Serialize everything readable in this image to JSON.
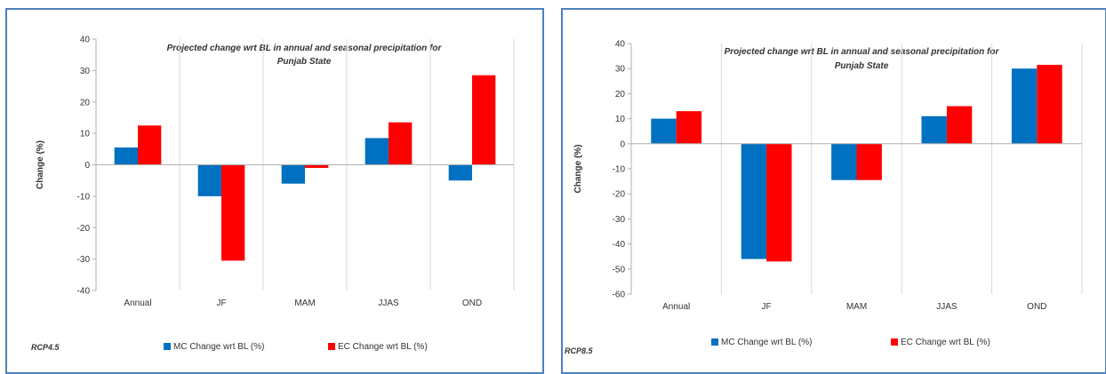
{
  "chart_data": [
    {
      "type": "bar",
      "title": "Projected change wrt BL in annual and seasonal precipitation for",
      "title_line2": "Punjab State",
      "scenario_label": "RCP4.5",
      "ylabel": "Change (%)",
      "xlabel": "",
      "ylim": [
        -40,
        40
      ],
      "yticks": [
        40,
        30,
        20,
        10,
        0,
        -10,
        -20,
        -30,
        -40
      ],
      "categories": [
        "Annual",
        "JF",
        "MAM",
        "JJAS",
        "OND"
      ],
      "grid": "vertical category separators",
      "legend_position": "bottom",
      "series": [
        {
          "name": "MC Change wrt BL (%)",
          "values": [
            5.5,
            -10,
            -6,
            8.5,
            -5
          ]
        },
        {
          "name": "EC Change wrt BL (%)",
          "values": [
            12.5,
            -30.5,
            -1,
            13.5,
            28.5
          ]
        }
      ]
    },
    {
      "type": "bar",
      "title": "Projected change wrt BL in annual and seasonal precipitation for",
      "title_line2": "Punjab State",
      "scenario_label": "RCP8.5",
      "ylabel": "Change (%)",
      "xlabel": "",
      "ylim": [
        -60,
        40
      ],
      "yticks": [
        40,
        30,
        20,
        10,
        0,
        -10,
        -20,
        -30,
        -40,
        -50,
        -60
      ],
      "categories": [
        "Annual",
        "JF",
        "MAM",
        "JJAS",
        "OND"
      ],
      "grid": "vertical category separators",
      "legend_position": "bottom",
      "series": [
        {
          "name": "MC Change wrt BL (%)",
          "values": [
            10,
            -46,
            -14.5,
            11,
            30
          ]
        },
        {
          "name": "EC Change wrt BL (%)",
          "values": [
            13,
            -47,
            -14.5,
            15,
            31.5
          ]
        }
      ]
    }
  ],
  "colors": {
    "mc": "#0070c0",
    "ec": "#ff0000",
    "axis": "#b0b0b0",
    "grid": "#d9d9d9",
    "border": "#4f81bd"
  }
}
